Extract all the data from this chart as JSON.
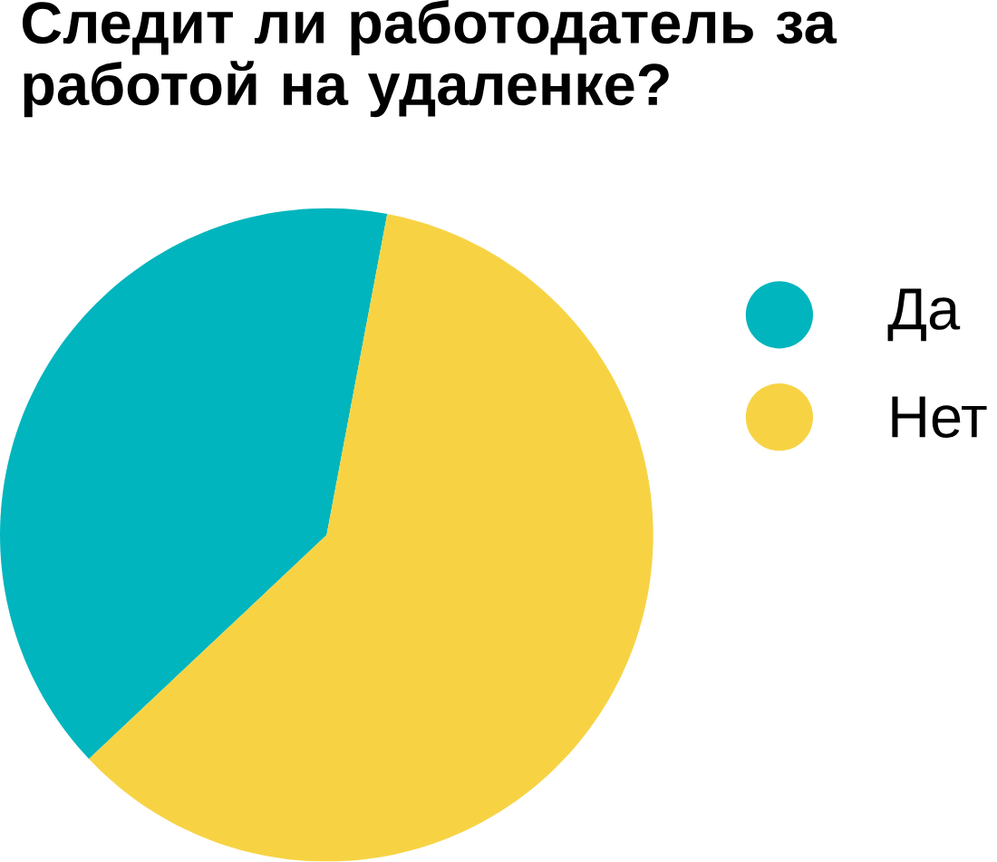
{
  "chart_data": {
    "type": "pie",
    "title": "Следит ли работодатель за работой на удаленке?",
    "categories": [
      "Да",
      "Нет"
    ],
    "values": [
      40,
      60
    ],
    "colors": [
      "#00b5bd",
      "#f7d344"
    ],
    "legend": "right"
  }
}
